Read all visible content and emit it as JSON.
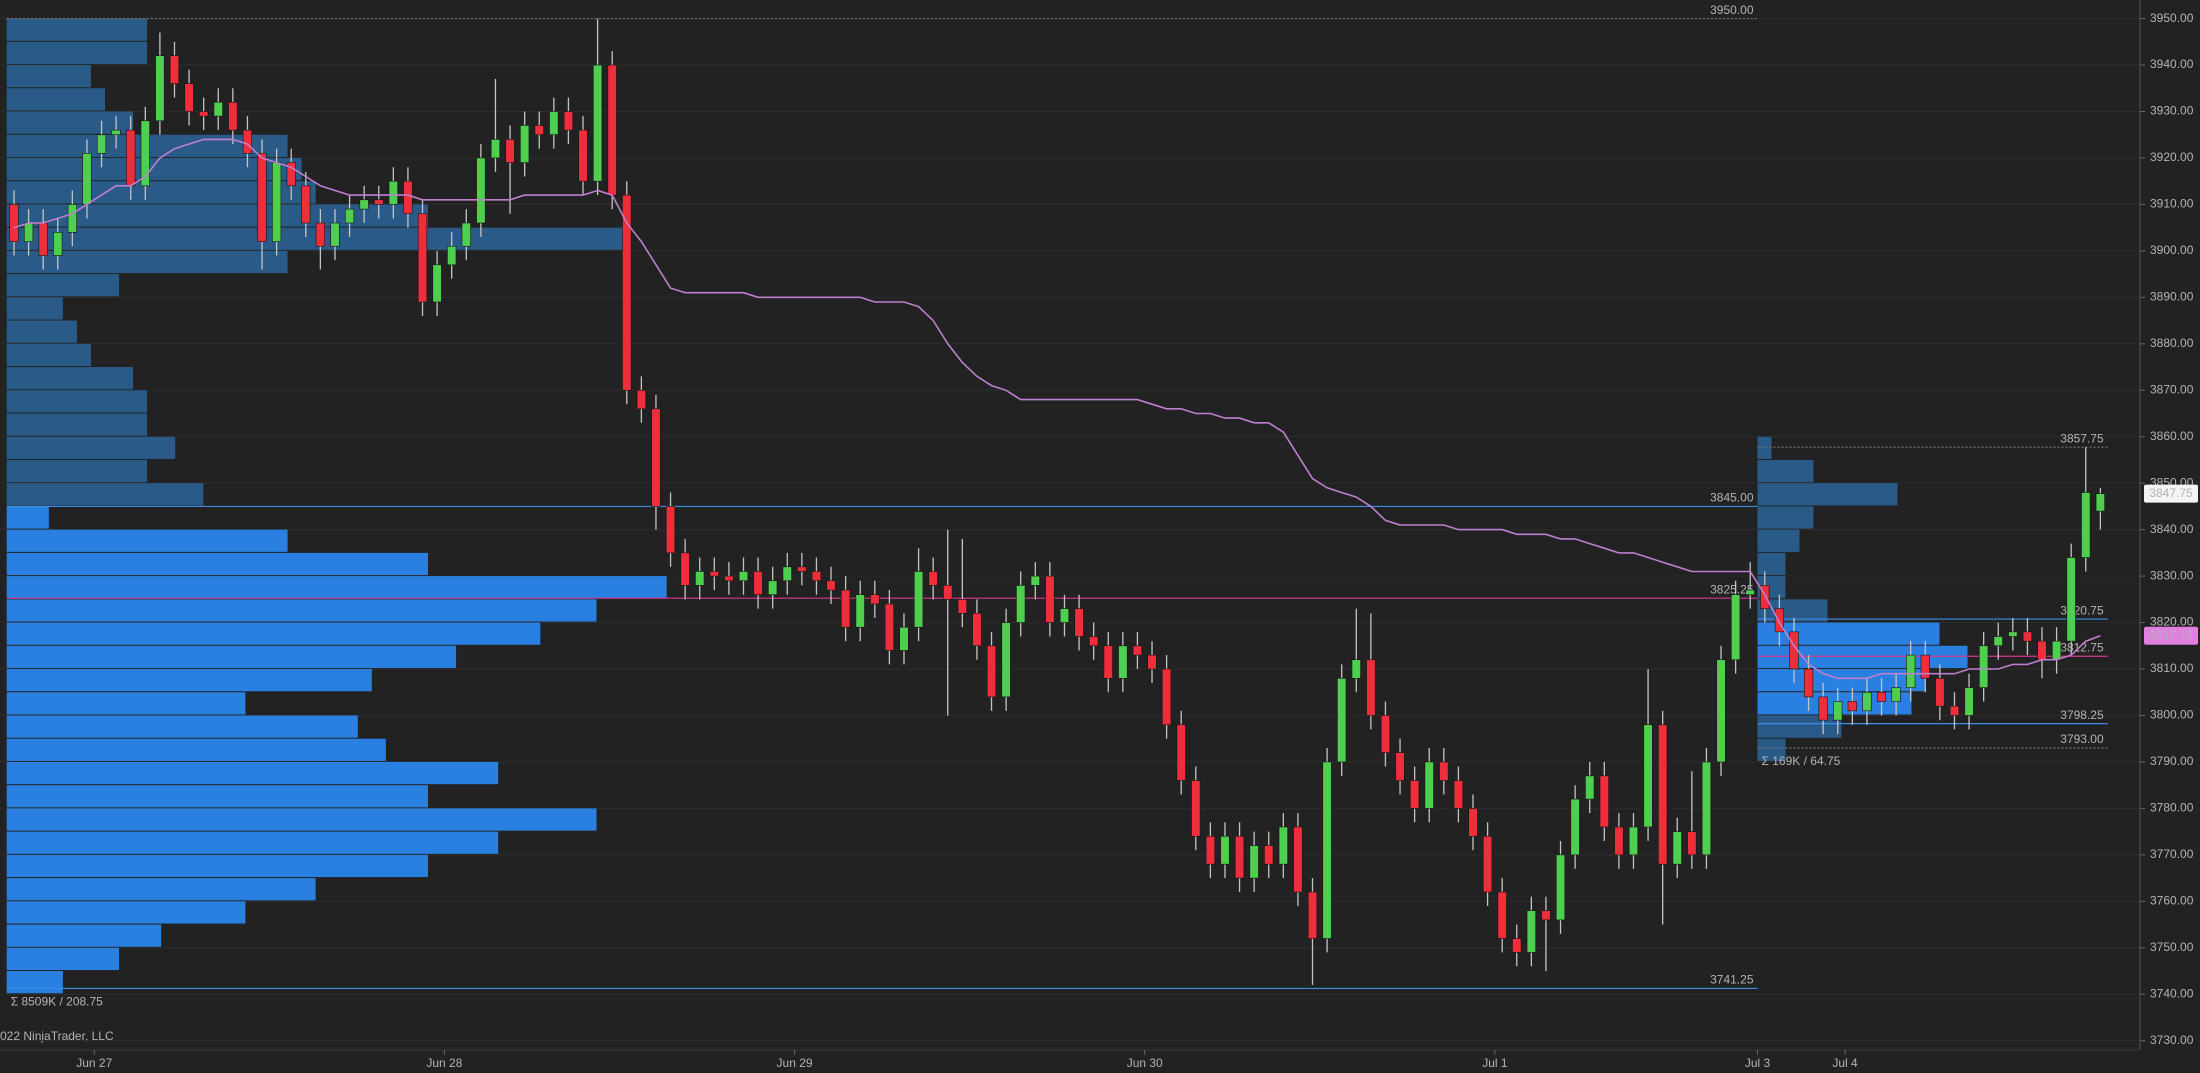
{
  "chart_data": {
    "type": "candlestick",
    "categories": [
      null,
      null,
      null,
      null,
      null,
      null,
      "Jun 27",
      null,
      null,
      null,
      null,
      null,
      null,
      null,
      null,
      null,
      null,
      null,
      null,
      null,
      null,
      null,
      null,
      null,
      null,
      null,
      null,
      null,
      null,
      null,
      "Jun 28",
      null,
      null,
      null,
      null,
      null,
      null,
      null,
      null,
      null,
      null,
      null,
      null,
      null,
      null,
      null,
      null,
      null,
      null,
      null,
      null,
      null,
      null,
      null,
      "Jun 29",
      null,
      null,
      null,
      null,
      null,
      null,
      null,
      null,
      null,
      null,
      null,
      null,
      null,
      null,
      null,
      null,
      null,
      null,
      null,
      null,
      null,
      null,
      null,
      "Jun 30",
      null,
      null,
      null,
      null,
      null,
      null,
      null,
      null,
      null,
      null,
      null,
      null,
      null,
      null,
      null,
      null,
      null,
      null,
      null,
      null,
      null,
      null,
      null,
      "Jul 1",
      null,
      null,
      null,
      null,
      null,
      null,
      null,
      null,
      null,
      null,
      null,
      null,
      null,
      null,
      null,
      null,
      null,
      "Jul 3",
      null,
      null,
      null,
      null,
      null,
      "Jul 4",
      null,
      null,
      null,
      null,
      null,
      null,
      null,
      null,
      null,
      null,
      null,
      null,
      null,
      null,
      null,
      null,
      null
    ],
    "open": [
      3910,
      3902,
      3906,
      3899,
      3904,
      3910,
      3921,
      3925,
      3926,
      3914,
      3928,
      3942,
      3936,
      3930,
      3929,
      3932,
      3926,
      3921,
      3902,
      3919,
      3914,
      3906,
      3901,
      3906,
      3909,
      3911,
      3910,
      3915,
      3908,
      3889,
      3897,
      3901,
      3906,
      3920,
      3924,
      3919,
      3927,
      3925,
      3930,
      3926,
      3915,
      3940,
      3912,
      3870,
      3866,
      3845,
      3835,
      3828,
      3831,
      3830,
      3829,
      3831,
      3826,
      3829,
      3832,
      3831,
      3829,
      3827,
      3819,
      3826,
      3824,
      3814,
      3819,
      3831,
      3828,
      3825,
      3822,
      3815,
      3804,
      3820,
      3828,
      3830,
      3820,
      3823,
      3817,
      3815,
      3808,
      3815,
      3813,
      3810,
      3798,
      3786,
      3774,
      3768,
      3774,
      3765,
      3772,
      3768,
      3776,
      3762,
      3752,
      3790,
      3808,
      3812,
      3800,
      3792,
      3786,
      3780,
      3790,
      3786,
      3780,
      3774,
      3762,
      3752,
      3749,
      3758,
      3756,
      3770,
      3782,
      3787,
      3776,
      3770,
      3776,
      3798,
      3768,
      3775,
      3770,
      3790,
      3812,
      3826,
      3828,
      3823,
      3818,
      3810,
      3804,
      3799,
      3803,
      3801,
      3805,
      3803,
      3806,
      3813,
      3808,
      3802,
      3800,
      3806,
      3815,
      3817,
      3818,
      3816,
      3812,
      3816,
      3834,
      3844
    ],
    "high": [
      3913,
      3909,
      3909,
      3907,
      3913,
      3924,
      3928,
      3929,
      3929,
      3931,
      3947,
      3945,
      3939,
      3933,
      3935,
      3935,
      3929,
      3924,
      3922,
      3922,
      3917,
      3909,
      3909,
      3912,
      3914,
      3914,
      3918,
      3918,
      3911,
      3900,
      3904,
      3909,
      3923,
      3937,
      3927,
      3930,
      3930,
      3933,
      3933,
      3929,
      3950,
      3943,
      3915,
      3873,
      3869,
      3848,
      3838,
      3834,
      3834,
      3833,
      3834,
      3834,
      3832,
      3835,
      3835,
      3834,
      3832,
      3830,
      3829,
      3829,
      3827,
      3822,
      3836,
      3834,
      3840,
      3838,
      3825,
      3818,
      3823,
      3831,
      3833,
      3833,
      3826,
      3826,
      3820,
      3818,
      3818,
      3818,
      3816,
      3813,
      3801,
      3789,
      3777,
      3777,
      3777,
      3775,
      3775,
      3779,
      3779,
      3765,
      3793,
      3811,
      3823,
      3822,
      3803,
      3795,
      3789,
      3793,
      3793,
      3789,
      3783,
      3777,
      3765,
      3755,
      3761,
      3761,
      3773,
      3785,
      3790,
      3790,
      3779,
      3779,
      3810,
      3801,
      3778,
      3788,
      3793,
      3815,
      3829,
      3833,
      3831,
      3826,
      3821,
      3813,
      3807,
      3806,
      3806,
      3808,
      3808,
      3809,
      3816,
      3816,
      3811,
      3805,
      3809,
      3818,
      3820,
      3821,
      3821,
      3819,
      3819,
      3837,
      3857.75,
      3849
    ],
    "low": [
      3899,
      3899,
      3896,
      3896,
      3901,
      3907,
      3918,
      3922,
      3911,
      3911,
      3925,
      3933,
      3927,
      3926,
      3926,
      3923,
      3918,
      3896,
      3899,
      3911,
      3903,
      3896,
      3898,
      3903,
      3906,
      3907,
      3907,
      3905,
      3886,
      3886,
      3894,
      3898,
      3903,
      3917,
      3908,
      3916,
      3922,
      3922,
      3923,
      3912,
      3912,
      3909,
      3867,
      3863,
      3840,
      3832,
      3825,
      3825,
      3827,
      3826,
      3826,
      3823,
      3823,
      3826,
      3828,
      3826,
      3824,
      3816,
      3816,
      3821,
      3811,
      3811,
      3816,
      3825,
      3800,
      3819,
      3812,
      3801,
      3801,
      3817,
      3825,
      3817,
      3817,
      3814,
      3812,
      3805,
      3805,
      3810,
      3807,
      3795,
      3783,
      3771,
      3765,
      3765,
      3762,
      3762,
      3765,
      3765,
      3759,
      3742,
      3749,
      3787,
      3805,
      3797,
      3789,
      3783,
      3777,
      3777,
      3783,
      3777,
      3771,
      3759,
      3749,
      3746,
      3746,
      3745,
      3753,
      3767,
      3779,
      3773,
      3767,
      3767,
      3773,
      3755,
      3765,
      3767,
      3767,
      3787,
      3809,
      3823,
      3820,
      3815,
      3807,
      3801,
      3796,
      3796,
      3798,
      3798,
      3800,
      3800,
      3803,
      3805,
      3799,
      3797,
      3797,
      3803,
      3812,
      3814,
      3813,
      3808,
      3809,
      3813,
      3831,
      3840
    ],
    "close": [
      3902,
      3906,
      3899,
      3904,
      3910,
      3921,
      3925,
      3926,
      3914,
      3928,
      3942,
      3936,
      3930,
      3929,
      3932,
      3926,
      3921,
      3902,
      3919,
      3914,
      3906,
      3901,
      3906,
      3909,
      3911,
      3910,
      3915,
      3908,
      3889,
      3897,
      3901,
      3906,
      3920,
      3924,
      3919,
      3927,
      3925,
      3930,
      3926,
      3915,
      3940,
      3912,
      3870,
      3866,
      3845,
      3835,
      3828,
      3831,
      3830,
      3829,
      3831,
      3826,
      3829,
      3832,
      3831,
      3829,
      3827,
      3819,
      3826,
      3824,
      3814,
      3819,
      3831,
      3828,
      3825,
      3822,
      3815,
      3804,
      3820,
      3828,
      3830,
      3820,
      3823,
      3817,
      3815,
      3808,
      3815,
      3813,
      3810,
      3798,
      3786,
      3774,
      3768,
      3774,
      3765,
      3772,
      3768,
      3776,
      3762,
      3752,
      3790,
      3808,
      3812,
      3800,
      3792,
      3786,
      3780,
      3790,
      3786,
      3780,
      3774,
      3762,
      3752,
      3749,
      3758,
      3756,
      3770,
      3782,
      3787,
      3776,
      3770,
      3776,
      3798,
      3768,
      3775,
      3770,
      3790,
      3812,
      3826,
      3827,
      3823,
      3818,
      3810,
      3804,
      3799,
      3803,
      3801,
      3805,
      3803,
      3806,
      3813,
      3808,
      3802,
      3800,
      3806,
      3815,
      3817,
      3818,
      3816,
      3812,
      3816,
      3834,
      3848,
      3847.75
    ],
    "last_label": "3847.75",
    "up_color": "#4fcf4f",
    "down_color": "#ee2f3b",
    "vwap": {
      "color": "#bf7fcf",
      "last_label": "3817.16",
      "values": [
        3905,
        3906,
        3906,
        3907,
        3908,
        3910,
        3912,
        3914,
        3914,
        3916,
        3920,
        3922,
        3923,
        3924,
        3924,
        3924,
        3923,
        3920,
        3919,
        3918,
        3916,
        3914,
        3913,
        3912,
        3912,
        3912,
        3912,
        3912,
        3911,
        3911,
        3911,
        3911,
        3911,
        3911,
        3911,
        3912,
        3912,
        3912,
        3912,
        3912,
        3913,
        3912,
        3906,
        3902,
        3897,
        3892,
        3891,
        3891,
        3891,
        3891,
        3891,
        3890,
        3890,
        3890,
        3890,
        3890,
        3890,
        3890,
        3890,
        3889,
        3889,
        3889,
        3888,
        3885,
        3880,
        3876,
        3873,
        3871,
        3870,
        3868,
        3868,
        3868,
        3868,
        3868,
        3868,
        3868,
        3868,
        3868,
        3867,
        3866,
        3866,
        3865,
        3865,
        3864,
        3864,
        3863,
        3863,
        3861,
        3856,
        3851,
        3849,
        3848,
        3847,
        3845,
        3842,
        3841,
        3841,
        3841,
        3841,
        3840,
        3840,
        3840,
        3840,
        3839,
        3839,
        3839,
        3838,
        3838,
        3837,
        3836,
        3835,
        3835,
        3834,
        3833,
        3832,
        3831,
        3831,
        3831,
        3831,
        3831,
        3826,
        3820,
        3815,
        3811,
        3809,
        3808,
        3808,
        3808,
        3809,
        3809,
        3809,
        3809,
        3809,
        3809,
        3810,
        3810,
        3810,
        3811,
        3811,
        3812,
        3812,
        3813,
        3816,
        3817.16
      ]
    },
    "ylim": [
      3728,
      3954
    ],
    "yticks": [
      {
        "value": 3730,
        "label": "3730.00"
      },
      {
        "value": 3740,
        "label": "3740.00"
      },
      {
        "value": 3750,
        "label": "3750.00"
      },
      {
        "value": 3760,
        "label": "3760.00"
      },
      {
        "value": 3770,
        "label": "3770.00"
      },
      {
        "value": 3780,
        "label": "3780.00"
      },
      {
        "value": 3790,
        "label": "3790.00"
      },
      {
        "value": 3800,
        "label": "3800.00"
      },
      {
        "value": 3810,
        "label": "3810.00"
      },
      {
        "value": 3820,
        "label": "3820.00"
      },
      {
        "value": 3830,
        "label": "3830.00"
      },
      {
        "value": 3840,
        "label": "3840.00"
      },
      {
        "value": 3850,
        "label": "3850.00"
      },
      {
        "value": 3860,
        "label": "3860.00"
      },
      {
        "value": 3870,
        "label": "3870.00"
      },
      {
        "value": 3880,
        "label": "3880.00"
      },
      {
        "value": 3890,
        "label": "3890.00"
      },
      {
        "value": 3900,
        "label": "3900.00"
      },
      {
        "value": 3910,
        "label": "3910.00"
      },
      {
        "value": 3920,
        "label": "3920.00"
      },
      {
        "value": 3930,
        "label": "3930.00"
      },
      {
        "value": 3940,
        "label": "3940.00"
      },
      {
        "value": 3950,
        "label": "3950.00"
      }
    ],
    "grid": true,
    "va_line_color": "#3b8ee6",
    "profiles": [
      {
        "bins": [
          3740,
          3745,
          3750,
          3755,
          3760,
          3765,
          3770,
          3775,
          3780,
          3785,
          3790,
          3795,
          3800,
          3805,
          3810,
          3815,
          3820,
          3825,
          3830,
          3835,
          3840,
          3845,
          3850,
          3855,
          3860,
          3865,
          3870,
          3875,
          3880,
          3885,
          3890,
          3895,
          3900,
          3905,
          3910,
          3915,
          3920,
          3925,
          3930,
          3935,
          3940,
          3945,
          3950
        ],
        "counts": [
          40,
          80,
          110,
          170,
          220,
          300,
          350,
          420,
          300,
          350,
          270,
          250,
          170,
          260,
          320,
          380,
          420,
          470,
          300,
          200,
          30,
          140,
          100,
          120,
          100,
          100,
          90,
          60,
          50,
          40,
          80,
          200,
          440,
          300,
          220,
          210,
          200,
          90,
          70,
          60,
          100,
          100
        ],
        "color": "#2a80e0",
        "outside_color": "#2a5b88",
        "levels": [
          {
            "value": 3950,
            "label": "3950.00",
            "color": "#7a7a7a"
          },
          {
            "value": 3845,
            "label": "3845.00",
            "color": "#3b8ee6"
          },
          {
            "value": 3825.25,
            "label": "3825.25",
            "color": "#d8368e"
          },
          {
            "value": 3741.25,
            "label": "3741.25",
            "color": "#3b8ee6"
          }
        ],
        "summary": "Σ 8509K / 208.75"
      },
      {
        "bins": [
          3790,
          3795,
          3800,
          3805,
          3810,
          3815,
          3820,
          3825,
          3830,
          3835,
          3840,
          3845,
          3850,
          3855,
          3860
        ],
        "counts": [
          20,
          60,
          110,
          120,
          150,
          130,
          50,
          20,
          20,
          30,
          40,
          100,
          40,
          10
        ],
        "color": "#2a80e0",
        "outside_color": "#2a5b88",
        "levels": [
          {
            "value": 3857.75,
            "label": "3857.75",
            "color": "#7a7a7a"
          },
          {
            "value": 3820.75,
            "label": "3820.75",
            "color": "#3b8ee6"
          },
          {
            "value": 3812.75,
            "label": "3812.75",
            "color": "#d8368e"
          },
          {
            "value": 3798.25,
            "label": "3798.25",
            "color": "#3b8ee6"
          },
          {
            "value": 3793,
            "label": "3793.00",
            "color": "#7a7a7a"
          }
        ],
        "summary": "Σ 169K / 64.75"
      }
    ],
    "copyright": "022 NinjaTrader, LLC"
  }
}
